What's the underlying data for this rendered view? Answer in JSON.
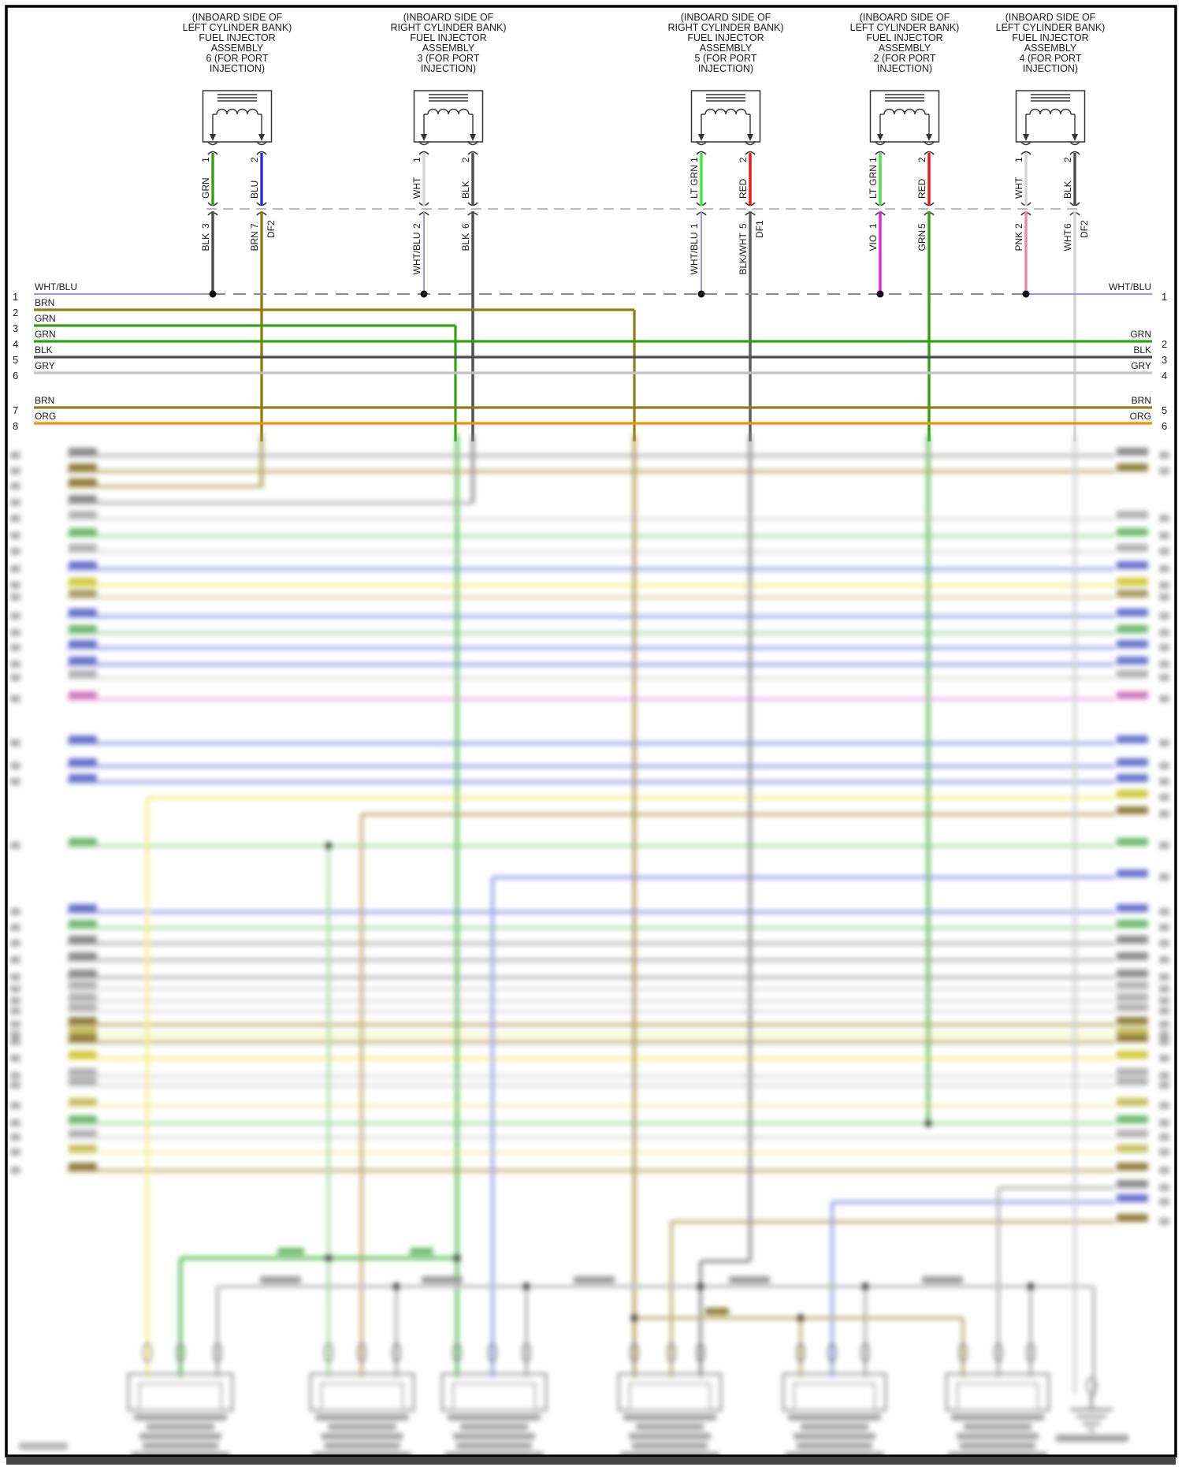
{
  "diagram": {
    "injectors": [
      {
        "title_lines": [
          "(INBOARD SIDE OF",
          "LEFT CYLINDER BANK)",
          "FUEL INJECTOR",
          "ASSEMBLY",
          "6 (FOR PORT",
          "INJECTION)"
        ],
        "pins_upper": [
          {
            "n": "1",
            "color": "GRN"
          },
          {
            "n": "2",
            "color": "BLU"
          }
        ],
        "pins_lower": [
          {
            "n": "3",
            "color": "BLK"
          },
          {
            "n": "7",
            "color": "BRN",
            "tag": "DF2"
          }
        ]
      },
      {
        "title_lines": [
          "(INBOARD SIDE OF",
          "RIGHT CYLINDER BANK)",
          "FUEL INJECTOR",
          "ASSEMBLY",
          "3 (FOR PORT",
          "INJECTION)"
        ],
        "pins_upper": [
          {
            "n": "1",
            "color": "WHT"
          },
          {
            "n": "2",
            "color": "BLK"
          }
        ],
        "pins_lower": [
          {
            "n": "2",
            "color": "WHT/BLU"
          },
          {
            "n": "6",
            "color": "BLK"
          }
        ]
      },
      {
        "title_lines": [
          "(INBOARD SIDE OF",
          "RIGHT CYLINDER BANK)",
          "FUEL INJECTOR",
          "ASSEMBLY",
          "5 (FOR PORT",
          "INJECTION)"
        ],
        "pins_upper": [
          {
            "n": "1",
            "color": "LT GRN"
          },
          {
            "n": "2",
            "color": "RED"
          }
        ],
        "pins_lower": [
          {
            "n": "1",
            "color": "WHT/BLU"
          },
          {
            "n": "5",
            "color": "BLK/WHT",
            "tag": "DF1"
          }
        ]
      },
      {
        "title_lines": [
          "(INBOARD SIDE OF",
          "LEFT CYLINDER BANK)",
          "FUEL INJECTOR",
          "ASSEMBLY",
          "2 (FOR PORT",
          "INJECTION)"
        ],
        "pins_upper": [
          {
            "n": "1",
            "color": "LT GRN"
          },
          {
            "n": "2",
            "color": "RED"
          }
        ],
        "pins_lower": [
          {
            "n": "1",
            "color": "VIO"
          },
          {
            "n": "5",
            "color": "GRN"
          }
        ]
      },
      {
        "title_lines": [
          "(INBOARD SIDE OF",
          "LEFT CYLINDER BANK)",
          "FUEL INJECTOR",
          "ASSEMBLY",
          "4 (FOR PORT",
          "INJECTION)"
        ],
        "pins_upper": [
          {
            "n": "1",
            "color": "WHT"
          },
          {
            "n": "2",
            "color": "BLK"
          }
        ],
        "pins_lower": [
          {
            "n": "2",
            "color": "PNK"
          },
          {
            "n": "6",
            "color": "WHT",
            "tag": "DF2"
          }
        ]
      }
    ],
    "left_bus": [
      {
        "n": "1",
        "label": "WHT/BLU"
      },
      {
        "n": "2",
        "label": "BRN"
      },
      {
        "n": "3",
        "label": "GRN"
      },
      {
        "n": "4",
        "label": "GRN"
      },
      {
        "n": "5",
        "label": "BLK"
      },
      {
        "n": "6",
        "label": "GRY"
      },
      {
        "n": "7",
        "label": "BRN"
      },
      {
        "n": "8",
        "label": "ORG"
      }
    ],
    "right_bus": [
      {
        "n": "1",
        "label": "WHT/BLU"
      },
      {
        "n": "2",
        "label": "GRN"
      },
      {
        "n": "3",
        "label": "BLK"
      },
      {
        "n": "4",
        "label": "GRY"
      },
      {
        "n": "5",
        "label": "BRN"
      },
      {
        "n": "6",
        "label": "ORG"
      }
    ],
    "wire_colors": {
      "GRN": "#2fa30c",
      "LT GRN": "#3ce83c",
      "BLU": "#2b2bd6",
      "BLK": "#4d4d4d",
      "BRN": "#937c12",
      "WHT": "#d4d4d4",
      "WHT/BLU": "#9c9cd9",
      "BLK/WHT": "#5a5a5a",
      "RED": "#ee1515",
      "VIO": "#e322e3",
      "PNK": "#f084ab",
      "GRY": "#c2c2c2",
      "ORG": "#f29100"
    }
  }
}
